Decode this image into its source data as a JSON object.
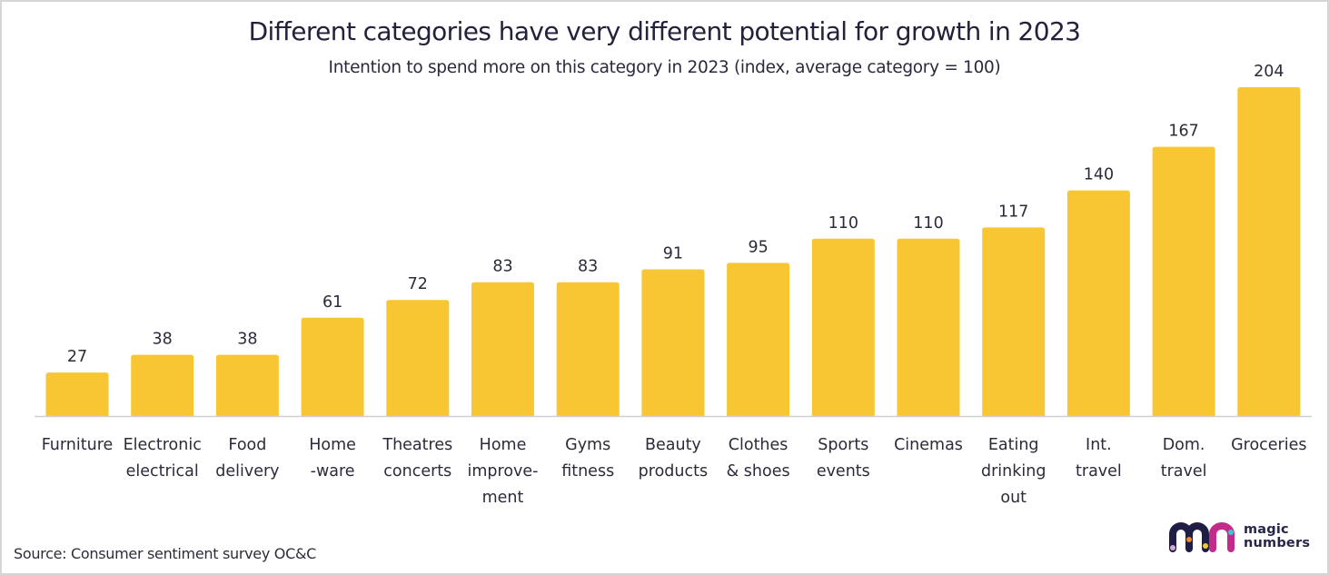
{
  "header": {
    "title": "Different categories have very different potential for growth in 2023",
    "subtitle": "Intention to spend more on this category in 2023 (index, average category = 100)"
  },
  "footer": {
    "source": "Source: Consumer sentiment survey OC&C",
    "logo": {
      "line1": "magic",
      "line2": "numbers"
    }
  },
  "colors": {
    "bar": "#f8c632",
    "axis": "#cfcfd4",
    "text": "#2b2b3b",
    "logo_navy": "#1e1d45",
    "logo_magenta": "#c42a8a"
  },
  "chart_data": {
    "type": "bar",
    "title": "Different categories have very different potential for growth in 2023",
    "subtitle": "Intention to spend more on this category in 2023 (index, average category = 100)",
    "xlabel": "",
    "ylabel": "",
    "ylim": [
      0,
      204
    ],
    "grid": false,
    "legend": "none",
    "categories": [
      [
        "Furniture"
      ],
      [
        "Electronic",
        "electrical"
      ],
      [
        "Food",
        "delivery"
      ],
      [
        "Home",
        "-ware"
      ],
      [
        "Theatres",
        "concerts"
      ],
      [
        "Home",
        "improve-",
        "ment"
      ],
      [
        "Gyms",
        "fitness"
      ],
      [
        "Beauty",
        "products"
      ],
      [
        "Clothes",
        "& shoes"
      ],
      [
        "Sports",
        "events"
      ],
      [
        "Cinemas"
      ],
      [
        "Eating",
        "drinking",
        "out"
      ],
      [
        "Int.",
        "travel"
      ],
      [
        "Dom.",
        "travel"
      ],
      [
        "Groceries"
      ]
    ],
    "values": [
      27,
      38,
      38,
      61,
      72,
      83,
      83,
      91,
      95,
      110,
      110,
      117,
      140,
      167,
      204
    ],
    "data_labels": [
      "27",
      "38",
      "38",
      "61",
      "72",
      "83",
      "83",
      "91",
      "95",
      "110",
      "110",
      "117",
      "140",
      "167",
      "204"
    ]
  }
}
